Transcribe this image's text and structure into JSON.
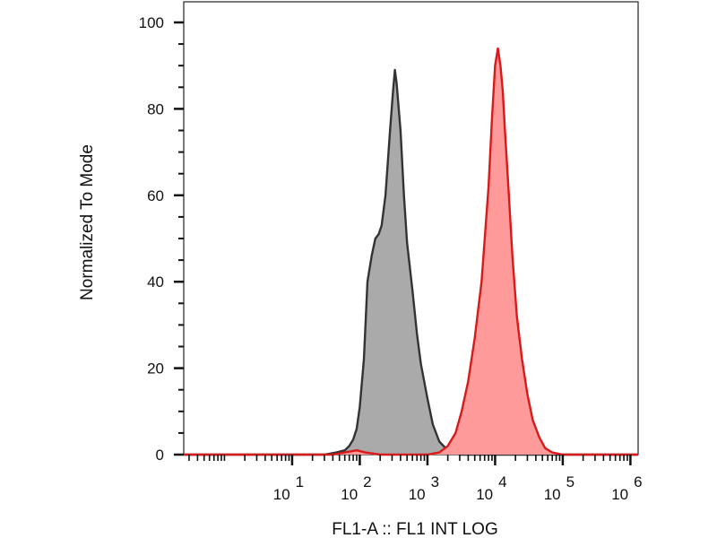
{
  "chart_data": {
    "type": "area",
    "title": "",
    "xlabel": "FL1-A :: FL1 INT LOG",
    "ylabel": "Normalized To Mode",
    "xscale": "log",
    "xlim": [
      0.25,
      1300000
    ],
    "ylim": [
      0,
      100
    ],
    "grid": false,
    "legend": "none",
    "x_ticks": [
      {
        "base": "10",
        "exp": "1",
        "value": 10
      },
      {
        "base": "10",
        "exp": "2",
        "value": 100
      },
      {
        "base": "10",
        "exp": "3",
        "value": 1000
      },
      {
        "base": "10",
        "exp": "4",
        "value": 10000
      },
      {
        "base": "10",
        "exp": "5",
        "value": 100000
      },
      {
        "base": "10",
        "exp": "6",
        "value": 1000000
      }
    ],
    "y_ticks": [
      {
        "label": "0",
        "value": 0
      },
      {
        "label": "20",
        "value": 20
      },
      {
        "label": "40",
        "value": 40
      },
      {
        "label": "60",
        "value": 60
      },
      {
        "label": "80",
        "value": 80
      },
      {
        "label": "100",
        "value": 100
      }
    ],
    "series": [
      {
        "fill": "#aaaaaa",
        "stroke": "#333333",
        "x": [
          0.25,
          30,
          45,
          60,
          70,
          80,
          90,
          100,
          115,
          130,
          150,
          170,
          190,
          210,
          240,
          280,
          310,
          330,
          350,
          400,
          450,
          500,
          600,
          700,
          800,
          1000,
          1200,
          1500,
          2000,
          3000,
          1300000
        ],
        "y": [
          0,
          0,
          0.5,
          1,
          2,
          3.5,
          6,
          11,
          22,
          40,
          46,
          50,
          51,
          53,
          60,
          75,
          84,
          89,
          86,
          75,
          60,
          49,
          38,
          28,
          21,
          13,
          7,
          3,
          1,
          0,
          0
        ]
      },
      {
        "fill": "#ff9a9a",
        "stroke": "#d81a1a",
        "x": [
          0.25,
          40,
          60,
          90,
          120,
          200,
          1000,
          1500,
          2000,
          2600,
          3200,
          4000,
          5000,
          6300,
          8000,
          9000,
          10000,
          11000,
          12000,
          13000,
          14000,
          16000,
          18000,
          21000,
          25000,
          30000,
          36000,
          45000,
          55000,
          70000,
          100000,
          1300000
        ],
        "y": [
          0,
          0,
          0.5,
          1,
          0.5,
          0,
          0,
          0.5,
          2,
          5,
          10,
          17,
          27,
          40,
          62,
          78,
          90,
          94,
          90,
          84,
          75,
          60,
          46,
          32,
          22,
          14,
          8,
          4,
          1.5,
          0.5,
          0,
          0
        ]
      }
    ]
  }
}
